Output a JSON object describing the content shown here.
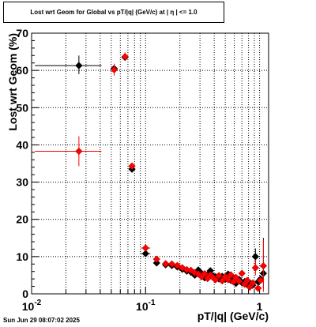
{
  "header": {
    "title": "Lost wrt Geom for Global vs pT/|q| (GeV/c) at |  η  | <= 1.0"
  },
  "footer": {
    "timestamp": "Sun Jun 29 08:07:02 2025"
  },
  "chart_data": {
    "type": "scatter",
    "title": "Lost wrt Geom for Global vs pT/|q| (GeV/c) at |  η  | <= 1.0",
    "xlabel": "pT/|q| (GeV/c)",
    "ylabel": "Lost wrt Geom (%)",
    "xscale": "log",
    "xlim": [
      0.01,
      1.2
    ],
    "ylim": [
      0,
      70
    ],
    "x_tick_labels": [
      "10⁻²",
      "10⁻¹",
      "1"
    ],
    "y_tick_labels": [
      "0",
      "10",
      "20",
      "30",
      "40",
      "50",
      "60",
      "70"
    ],
    "y_ticks": [
      0,
      10,
      20,
      30,
      40,
      50,
      60,
      70
    ],
    "grid": true,
    "colors": {
      "series_black": "#000000",
      "series_red": "#ff0000"
    },
    "series": [
      {
        "color": "#000000",
        "marker": "diamond",
        "points": [
          {
            "x": 0.026,
            "y": 61.3,
            "xlo": 0.0107,
            "xhi": 0.041,
            "ylo": 59.0,
            "yhi": 64.0
          },
          {
            "x": 0.053,
            "y": 60.5
          },
          {
            "x": 0.066,
            "y": 63.5
          },
          {
            "x": 0.076,
            "y": 33.5,
            "ylo": 32.6,
            "yhi": 34.4
          },
          {
            "x": 0.1,
            "y": 10.8,
            "xlo": 0.091,
            "xhi": 0.11
          },
          {
            "x": 0.125,
            "y": 8.3
          },
          {
            "x": 0.15,
            "y": 7.8
          },
          {
            "x": 0.17,
            "y": 7.6
          },
          {
            "x": 0.19,
            "y": 7.2
          },
          {
            "x": 0.21,
            "y": 6.6
          },
          {
            "x": 0.23,
            "y": 6.1
          },
          {
            "x": 0.25,
            "y": 5.8
          },
          {
            "x": 0.27,
            "y": 5.0
          },
          {
            "x": 0.29,
            "y": 6.4
          },
          {
            "x": 0.31,
            "y": 5.5
          },
          {
            "x": 0.33,
            "y": 4.3
          },
          {
            "x": 0.35,
            "y": 5.2
          },
          {
            "x": 0.37,
            "y": 6.2
          },
          {
            "x": 0.39,
            "y": 4.8
          },
          {
            "x": 0.41,
            "y": 4.6
          },
          {
            "x": 0.44,
            "y": 4.0
          },
          {
            "x": 0.47,
            "y": 4.7
          },
          {
            "x": 0.5,
            "y": 3.9
          },
          {
            "x": 0.53,
            "y": 5.3
          },
          {
            "x": 0.56,
            "y": 3.6
          },
          {
            "x": 0.59,
            "y": 4.2
          },
          {
            "x": 0.62,
            "y": 2.8
          },
          {
            "x": 0.66,
            "y": 3.9
          },
          {
            "x": 0.7,
            "y": 3.0
          },
          {
            "x": 0.74,
            "y": 3.3
          },
          {
            "x": 0.78,
            "y": 2.4
          },
          {
            "x": 0.82,
            "y": 3.0
          },
          {
            "x": 0.87,
            "y": 2.3
          },
          {
            "x": 0.92,
            "y": 10.0,
            "ylo": 7.5,
            "yhi": 12.2
          },
          {
            "x": 0.97,
            "y": 3.2
          },
          {
            "x": 1.02,
            "y": 4.0
          },
          {
            "x": 1.08,
            "y": 5.5,
            "ylo": 1.5,
            "yhi": 15.0
          }
        ]
      },
      {
        "color": "#ff0000",
        "marker": "diamond",
        "points": [
          {
            "x": 0.026,
            "y": 38.3,
            "xlo": 0.0107,
            "xhi": 0.041,
            "ylo": 34.3,
            "yhi": 42.3
          },
          {
            "x": 0.053,
            "y": 60.2,
            "ylo": 58.6,
            "yhi": 61.8
          },
          {
            "x": 0.066,
            "y": 63.7,
            "ylo": 62.7,
            "yhi": 64.8
          },
          {
            "x": 0.076,
            "y": 34.3,
            "ylo": 33.5,
            "yhi": 35.2
          },
          {
            "x": 0.1,
            "y": 12.3,
            "xlo": 0.091,
            "xhi": 0.11
          },
          {
            "x": 0.125,
            "y": 9.3
          },
          {
            "x": 0.15,
            "y": 8.1
          },
          {
            "x": 0.17,
            "y": 8.0
          },
          {
            "x": 0.19,
            "y": 7.6
          },
          {
            "x": 0.21,
            "y": 7.0
          },
          {
            "x": 0.23,
            "y": 6.5
          },
          {
            "x": 0.25,
            "y": 6.3
          },
          {
            "x": 0.27,
            "y": 5.7
          },
          {
            "x": 0.29,
            "y": 5.3
          },
          {
            "x": 0.31,
            "y": 4.6
          },
          {
            "x": 0.33,
            "y": 5.4
          },
          {
            "x": 0.35,
            "y": 4.1
          },
          {
            "x": 0.37,
            "y": 5.0
          },
          {
            "x": 0.39,
            "y": 4.4
          },
          {
            "x": 0.41,
            "y": 3.8
          },
          {
            "x": 0.44,
            "y": 4.9
          },
          {
            "x": 0.47,
            "y": 3.5
          },
          {
            "x": 0.5,
            "y": 4.6
          },
          {
            "x": 0.53,
            "y": 3.8
          },
          {
            "x": 0.56,
            "y": 5.1
          },
          {
            "x": 0.59,
            "y": 3.2
          },
          {
            "x": 0.62,
            "y": 4.4
          },
          {
            "x": 0.66,
            "y": 3.4
          },
          {
            "x": 0.7,
            "y": 5.5
          },
          {
            "x": 0.74,
            "y": 2.6
          },
          {
            "x": 0.78,
            "y": 3.6
          },
          {
            "x": 0.82,
            "y": 1.8
          },
          {
            "x": 0.87,
            "y": 2.9
          },
          {
            "x": 0.92,
            "y": 7.0,
            "ylo": 5.0,
            "yhi": 9.2
          },
          {
            "x": 0.97,
            "y": 1.5
          },
          {
            "x": 1.02,
            "y": 3.6
          },
          {
            "x": 1.08,
            "y": 7.5,
            "ylo": 0.5,
            "yhi": 14.5
          }
        ]
      }
    ]
  }
}
